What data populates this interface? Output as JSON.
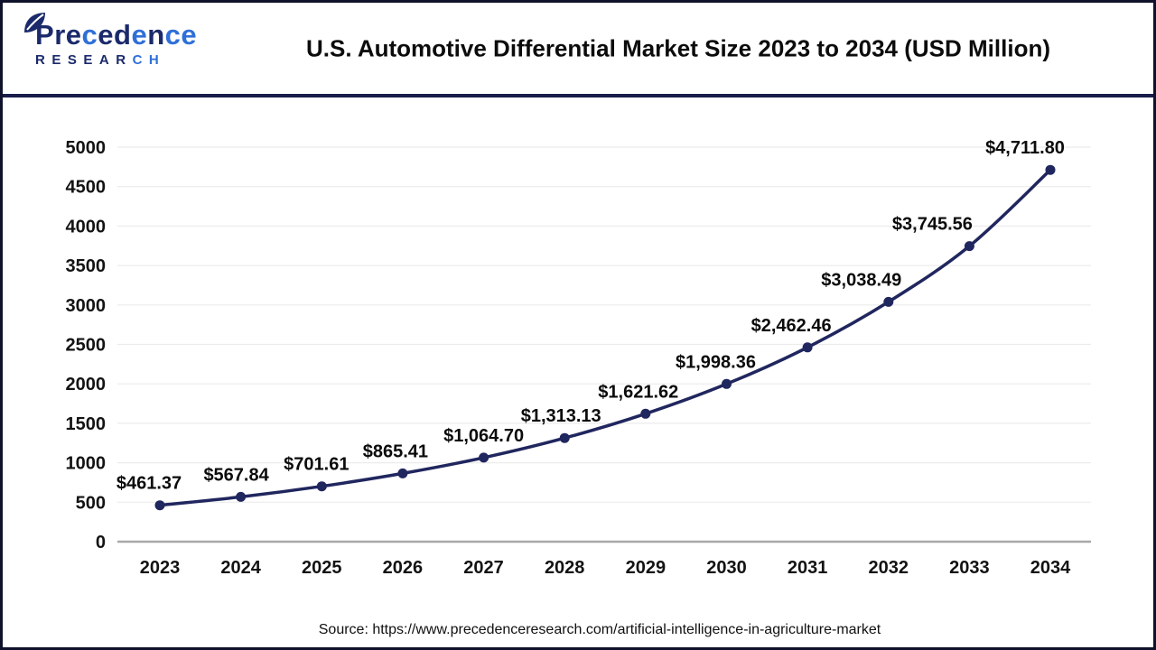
{
  "header": {
    "logo": {
      "brand": "Precedence",
      "subtitle": "RESEARCH",
      "brand_navy": "#1b2a6b",
      "brand_blue": "#2f6fd8"
    },
    "title": "U.S. Automotive Differential Market Size 2023 to 2034 (USD Million)"
  },
  "chart_data": {
    "type": "line",
    "title": "U.S. Automotive Differential Market Size 2023 to 2034 (USD Million)",
    "xlabel": "",
    "ylabel": "",
    "categories": [
      "2023",
      "2024",
      "2025",
      "2026",
      "2027",
      "2028",
      "2029",
      "2030",
      "2031",
      "2032",
      "2033",
      "2034"
    ],
    "values": [
      461.37,
      567.84,
      701.61,
      865.41,
      1064.7,
      1313.13,
      1621.62,
      1998.36,
      2462.46,
      3038.49,
      3745.56,
      4711.8
    ],
    "point_labels": [
      "$461.37",
      "$567.84",
      "$701.61",
      "$865.41",
      "$1,064.70",
      "$1,313.13",
      "$1,621.62",
      "$1,998.36",
      "$2,462.46",
      "$3,038.49",
      "$3,745.56",
      "$4,711.80"
    ],
    "ylim": [
      0,
      5000
    ],
    "yticks": [
      0,
      500,
      1000,
      1500,
      2000,
      2500,
      3000,
      3500,
      4000,
      4500,
      5000
    ],
    "grid": true,
    "legend": "none",
    "line_color": "#20265e",
    "marker_color": "#20265e",
    "grid_color": "#ececec",
    "axis_line_color": "#a8a8a8",
    "label_color": "#0b0b0b"
  },
  "footer": {
    "source": "Source: https://www.precedenceresearch.com/artificial-intelligence-in-agriculture-market"
  }
}
